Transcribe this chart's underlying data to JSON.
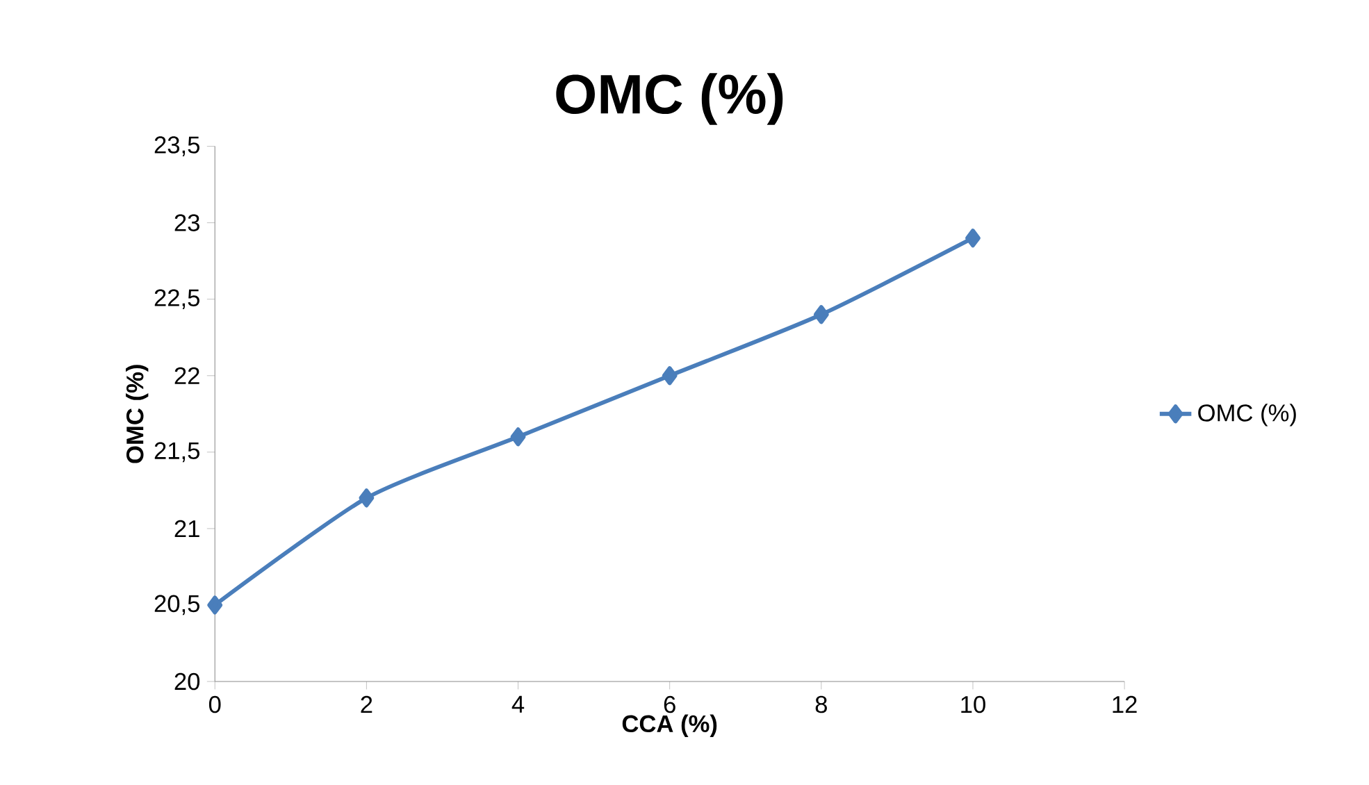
{
  "chart_data": {
    "type": "line",
    "title": "OMC (%)",
    "xlabel": "CCA (%)",
    "ylabel": "OMC (%)",
    "x": [
      0,
      2,
      4,
      6,
      8,
      10
    ],
    "series": [
      {
        "name": "OMC (%)",
        "color": "#4a7ebb",
        "values": [
          20.5,
          21.2,
          21.6,
          22.0,
          22.4,
          22.9
        ]
      }
    ],
    "xlim": [
      0,
      12
    ],
    "xticks": [
      0,
      2,
      4,
      6,
      8,
      10,
      12
    ],
    "ylim": [
      20,
      23.5
    ],
    "yticks": [
      20,
      {
        "value": 20.5,
        "label": "20,5"
      },
      21,
      {
        "value": 21.5,
        "label": "21,5"
      },
      22,
      {
        "value": 22.5,
        "label": "22,5"
      },
      23,
      {
        "value": 23.5,
        "label": "23,5"
      }
    ],
    "legend": "right",
    "marker": "diamond",
    "line_style": "solid",
    "grid": false
  }
}
